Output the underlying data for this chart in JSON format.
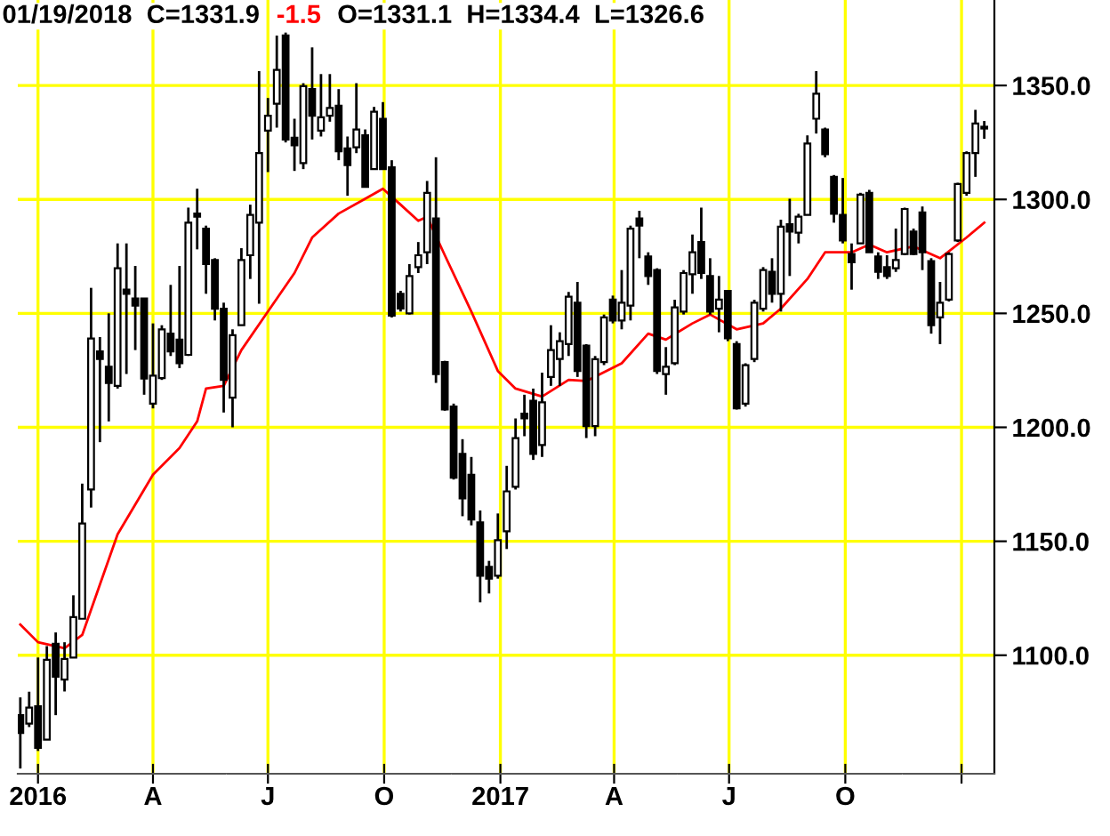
{
  "chart_data": {
    "type": "candlestick",
    "annotations": [
      "01/19/2018  C=1331.9",
      "-1.5",
      "O=1331.1  H=1334.4  L=1326.6"
    ],
    "x": [
      "2015-12-18",
      "2015-12-25",
      "2016-01-01",
      "2016-01-08",
      "2016-01-15",
      "2016-01-22",
      "2016-01-29",
      "2016-02-05",
      "2016-02-12",
      "2016-02-19",
      "2016-02-26",
      "2016-03-04",
      "2016-03-11",
      "2016-03-18",
      "2016-03-25",
      "2016-04-01",
      "2016-04-08",
      "2016-04-15",
      "2016-04-22",
      "2016-04-29",
      "2016-05-06",
      "2016-05-13",
      "2016-05-20",
      "2016-05-27",
      "2016-06-03",
      "2016-06-10",
      "2016-06-17",
      "2016-06-24",
      "2016-07-01",
      "2016-07-08",
      "2016-07-15",
      "2016-07-22",
      "2016-07-29",
      "2016-08-05",
      "2016-08-12",
      "2016-08-19",
      "2016-08-26",
      "2016-09-02",
      "2016-09-09",
      "2016-09-16",
      "2016-09-23",
      "2016-09-30",
      "2016-10-07",
      "2016-10-14",
      "2016-10-21",
      "2016-10-28",
      "2016-11-04",
      "2016-11-11",
      "2016-11-18",
      "2016-11-25",
      "2016-12-02",
      "2016-12-09",
      "2016-12-16",
      "2016-12-23",
      "2016-12-30",
      "2017-01-06",
      "2017-01-13",
      "2017-01-20",
      "2017-01-27",
      "2017-02-03",
      "2017-02-10",
      "2017-02-17",
      "2017-02-24",
      "2017-03-03",
      "2017-03-10",
      "2017-03-17",
      "2017-03-24",
      "2017-03-31",
      "2017-04-07",
      "2017-04-14",
      "2017-04-21",
      "2017-04-28",
      "2017-05-05",
      "2017-05-12",
      "2017-05-19",
      "2017-05-26",
      "2017-06-02",
      "2017-06-09",
      "2017-06-16",
      "2017-06-23",
      "2017-06-30",
      "2017-07-07",
      "2017-07-14",
      "2017-07-21",
      "2017-07-28",
      "2017-08-04",
      "2017-08-11",
      "2017-08-18",
      "2017-08-25",
      "2017-09-01",
      "2017-09-08",
      "2017-09-15",
      "2017-09-22",
      "2017-09-29",
      "2017-10-06",
      "2017-10-13",
      "2017-10-20",
      "2017-10-27",
      "2017-11-03",
      "2017-11-10",
      "2017-11-17",
      "2017-11-24",
      "2017-12-01",
      "2017-12-08",
      "2017-12-15",
      "2017-12-22",
      "2017-12-29",
      "2018-01-05",
      "2018-01-12",
      "2018-01-19"
    ],
    "ohlc": [
      [
        1073.7,
        1081.5,
        1050.3,
        1065.9
      ],
      [
        1070,
        1084,
        1068.5,
        1077
      ],
      [
        1077.6,
        1099,
        1058,
        1059.4
      ],
      [
        1063,
        1104,
        1063,
        1098
      ],
      [
        1105,
        1110,
        1073.7,
        1090.6
      ],
      [
        1089.3,
        1105.7,
        1084.1,
        1098.4
      ],
      [
        1099,
        1126.3,
        1099,
        1116.7
      ],
      [
        1116,
        1175.3,
        1116,
        1157.8
      ],
      [
        1172.7,
        1261.2,
        1164.8,
        1239
      ],
      [
        1233.3,
        1239.6,
        1193.5,
        1230
      ],
      [
        1226.6,
        1250,
        1202.6,
        1219.5
      ],
      [
        1218.2,
        1280.7,
        1217,
        1269.8
      ],
      [
        1260.4,
        1280.7,
        1223.4,
        1258.6
      ],
      [
        1256.5,
        1270.8,
        1233.9,
        1253.4
      ],
      [
        1256.5,
        1256.5,
        1214.3,
        1221.4
      ],
      [
        1210.4,
        1245.6,
        1208.3,
        1222.7
      ],
      [
        1221.6,
        1244.8,
        1220.8,
        1243
      ],
      [
        1241.1,
        1262.5,
        1231.3,
        1233.3
      ],
      [
        1238.5,
        1270.8,
        1226,
        1228.1
      ],
      [
        1231.8,
        1296.4,
        1231.3,
        1289.8
      ],
      [
        1293.8,
        1304.7,
        1278.1,
        1292.4
      ],
      [
        1287.2,
        1288.5,
        1258.6,
        1271.6
      ],
      [
        1273.4,
        1274.2,
        1246.9,
        1252
      ],
      [
        1252,
        1254.7,
        1206.5,
        1220.8
      ],
      [
        1213,
        1243,
        1200,
        1240.4
      ],
      [
        1244.8,
        1278.6,
        1244.8,
        1273.4
      ],
      [
        1275.5,
        1297.7,
        1265.1,
        1293.2
      ],
      [
        1289.8,
        1356.3,
        1254.2,
        1320.3
      ],
      [
        1330.2,
        1344.5,
        1312,
        1336.7
      ],
      [
        1342,
        1371.9,
        1331.5,
        1356.8
      ],
      [
        1371.9,
        1373.2,
        1325,
        1326.3
      ],
      [
        1327.1,
        1335.4,
        1312.5,
        1323.7
      ],
      [
        1315.9,
        1351,
        1313.3,
        1349.7
      ],
      [
        1348.4,
        1366.7,
        1326.3,
        1336.7
      ],
      [
        1330.2,
        1355,
        1327.6,
        1336
      ],
      [
        1336.7,
        1355,
        1334.1,
        1340.1
      ],
      [
        1341.1,
        1348.4,
        1317.2,
        1321.1
      ],
      [
        1322.4,
        1327.6,
        1301.6,
        1315.1
      ],
      [
        1322.9,
        1351,
        1320.3,
        1330.7
      ],
      [
        1328.1,
        1330.7,
        1305.5,
        1305.5
      ],
      [
        1313.3,
        1340.6,
        1313.3,
        1338.5
      ],
      [
        1335.4,
        1342.7,
        1313.3,
        1313.3
      ],
      [
        1314.1,
        1317.2,
        1248.2,
        1249
      ],
      [
        1258.6,
        1259.9,
        1250.8,
        1252.1
      ],
      [
        1250,
        1271.6,
        1249.5,
        1266.4
      ],
      [
        1270.3,
        1281.3,
        1267.7,
        1275.5
      ],
      [
        1276.8,
        1308.1,
        1271.6,
        1302.9
      ],
      [
        1291.7,
        1318.5,
        1219.5,
        1223.4
      ],
      [
        1228.6,
        1229.2,
        1207.3,
        1207.8
      ],
      [
        1209.1,
        1210.4,
        1177.1,
        1177.9
      ],
      [
        1188.3,
        1194.8,
        1161,
        1168.8
      ],
      [
        1179.2,
        1187,
        1157,
        1159.6
      ],
      [
        1158.3,
        1163.5,
        1123.2,
        1134.9
      ],
      [
        1138.8,
        1141.4,
        1127.1,
        1133.6
      ],
      [
        1134.9,
        1162.2,
        1133.6,
        1150.5
      ],
      [
        1154.4,
        1183.1,
        1146.6,
        1171.9
      ],
      [
        1173.9,
        1203.9,
        1172.7,
        1195.3
      ],
      [
        1206,
        1214.3,
        1196.1,
        1203.9
      ],
      [
        1211.7,
        1217,
        1185.7,
        1188.3
      ],
      [
        1192.2,
        1224,
        1187,
        1211
      ],
      [
        1222.1,
        1244.8,
        1218.2,
        1233.9
      ],
      [
        1230,
        1241.7,
        1218.2,
        1237.8
      ],
      [
        1236.5,
        1259.4,
        1231.3,
        1257.3
      ],
      [
        1254.7,
        1263.8,
        1222.1,
        1224.7
      ],
      [
        1235.9,
        1236.5,
        1195.3,
        1200.5
      ],
      [
        1200.5,
        1231.3,
        1196.1,
        1229.9
      ],
      [
        1228.6,
        1249.5,
        1227.3,
        1248.2
      ],
      [
        1256,
        1257.8,
        1245.6,
        1246.9
      ],
      [
        1246.9,
        1269,
        1243,
        1254.7
      ],
      [
        1253.4,
        1288.5,
        1246.9,
        1287.2
      ],
      [
        1291.7,
        1295,
        1274.2,
        1288.5
      ],
      [
        1275,
        1276.8,
        1262.5,
        1266.4
      ],
      [
        1269,
        1269.8,
        1223.4,
        1224.7
      ],
      [
        1223.4,
        1235.2,
        1214.3,
        1226.6
      ],
      [
        1228.1,
        1256,
        1227.3,
        1252.6
      ],
      [
        1250.8,
        1269,
        1249.5,
        1267.7
      ],
      [
        1267.2,
        1284.6,
        1258.6,
        1276.8
      ],
      [
        1281.3,
        1296.4,
        1265.1,
        1267.7
      ],
      [
        1266.4,
        1274.2,
        1249.5,
        1250.8
      ],
      [
        1252,
        1266.4,
        1241.7,
        1256
      ],
      [
        1259.9,
        1259.9,
        1237.8,
        1239.1
      ],
      [
        1236.5,
        1237.8,
        1207.8,
        1208.3
      ],
      [
        1210.4,
        1228.1,
        1209.1,
        1227.3
      ],
      [
        1230,
        1256,
        1228.6,
        1254.7
      ],
      [
        1252,
        1270.3,
        1250.8,
        1269
      ],
      [
        1268.2,
        1274.2,
        1254.7,
        1258.6
      ],
      [
        1258.6,
        1291.1,
        1250.8,
        1288
      ],
      [
        1289.1,
        1300.3,
        1266.4,
        1285.9
      ],
      [
        1285.4,
        1293.7,
        1280.7,
        1292.4
      ],
      [
        1293.2,
        1328.1,
        1293.2,
        1324.5
      ],
      [
        1335.4,
        1356.3,
        1328.9,
        1346.4
      ],
      [
        1330.7,
        1331.5,
        1318.5,
        1319.8
      ],
      [
        1309.9,
        1310.7,
        1289.8,
        1293.7
      ],
      [
        1293.2,
        1309.4,
        1280.7,
        1282
      ],
      [
        1276,
        1280.7,
        1260.4,
        1272.4
      ],
      [
        1280.7,
        1302.9,
        1280.7,
        1302.1
      ],
      [
        1302.9,
        1304.2,
        1276.8,
        1276.8
      ],
      [
        1275,
        1276.8,
        1265.1,
        1268.2
      ],
      [
        1270.3,
        1275.5,
        1265.1,
        1266.4
      ],
      [
        1269.8,
        1287.2,
        1268.2,
        1273.4
      ],
      [
        1276,
        1296.4,
        1275.5,
        1295.8
      ],
      [
        1285.9,
        1287.2,
        1275.5,
        1276
      ],
      [
        1294.3,
        1296.9,
        1269,
        1276.8
      ],
      [
        1272.9,
        1274.2,
        1241.1,
        1244.8
      ],
      [
        1248.2,
        1263.8,
        1236.5,
        1254.7
      ],
      [
        1256,
        1276.8,
        1255.2,
        1276
      ],
      [
        1282,
        1307.3,
        1281.3,
        1306.8
      ],
      [
        1302.9,
        1321.1,
        1301.6,
        1320.3
      ],
      [
        1320.3,
        1339.3,
        1309.9,
        1333.3
      ],
      [
        1331.1,
        1334.4,
        1326.6,
        1331.9
      ]
    ],
    "series": [
      {
        "type": "line",
        "color": "#ff0000",
        "x": [
          "2015-12-18",
          "2016-01-01",
          "2016-01-22",
          "2016-02-05",
          "2016-02-19",
          "2016-03-04",
          "2016-03-25",
          "2016-04-01",
          "2016-04-22",
          "2016-05-06",
          "2016-05-13",
          "2016-05-27",
          "2016-06-10",
          "2016-07-01",
          "2016-07-22",
          "2016-08-05",
          "2016-08-26",
          "2016-09-16",
          "2016-09-30",
          "2016-10-14",
          "2016-10-28",
          "2016-11-04",
          "2016-11-18",
          "2016-12-09",
          "2016-12-30",
          "2017-01-13",
          "2017-02-03",
          "2017-02-24",
          "2017-03-10",
          "2017-04-07",
          "2017-04-28",
          "2017-05-12",
          "2017-06-02",
          "2017-06-16",
          "2017-07-07",
          "2017-07-28",
          "2017-08-11",
          "2017-09-01",
          "2017-09-15",
          "2017-10-06",
          "2017-10-20",
          "2017-11-03",
          "2017-11-24",
          "2017-12-15",
          "2018-01-05",
          "2018-01-19"
        ],
        "values": [
          1113.5,
          1105.7,
          1103.1,
          1108.9,
          1131,
          1153.1,
          1172.7,
          1179.2,
          1190.9,
          1202.6,
          1217,
          1218.2,
          1233.9,
          1250.8,
          1267.7,
          1283.3,
          1293.8,
          1300.3,
          1304.7,
          1297.7,
          1290.6,
          1292.4,
          1275.5,
          1250.8,
          1224.7,
          1217,
          1213.5,
          1220.8,
          1220.3,
          1228.1,
          1241.1,
          1238.5,
          1245.6,
          1249.5,
          1243,
          1245.6,
          1252.1,
          1265.1,
          1276.8,
          1276.8,
          1280.2,
          1276.8,
          1279.4,
          1274.2,
          1283.3,
          1289.8
        ]
      }
    ],
    "xlim": [
      "2015-12-16",
      "2018-01-27"
    ],
    "xticks": [
      {
        "value": "2016-01-01",
        "label": "2016"
      },
      {
        "value": "2016-04-01",
        "label": "A"
      },
      {
        "value": "2016-07-01",
        "label": "J"
      },
      {
        "value": "2016-10-01",
        "label": "O"
      },
      {
        "value": "2017-01-01",
        "label": "2017"
      },
      {
        "value": "2017-04-01",
        "label": "A"
      },
      {
        "value": "2017-07-01",
        "label": "J"
      },
      {
        "value": "2017-10-01",
        "label": "O"
      },
      {
        "value": "2018-01-01",
        "label": null
      }
    ],
    "ylim": [
      1048,
      1387.5
    ],
    "yticks": [
      {
        "value": 1100,
        "label": "1100.0"
      },
      {
        "value": 1150,
        "label": "1150.0"
      },
      {
        "value": 1200,
        "label": "1200.0"
      },
      {
        "value": 1250,
        "label": "1250.0"
      },
      {
        "value": 1300,
        "label": "1300.0"
      },
      {
        "value": 1350,
        "label": "1350.0"
      }
    ],
    "grid": true,
    "legend": false
  }
}
